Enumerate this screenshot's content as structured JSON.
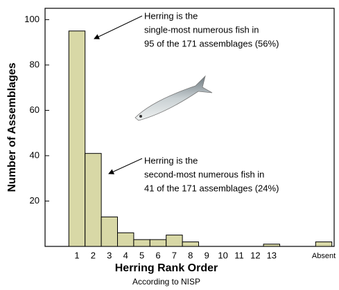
{
  "chart_data": {
    "type": "bar",
    "x_label": "Herring Rank Order",
    "x_sublabel": "According to NISP",
    "y_label": "Number of Assemblages",
    "categories": [
      "1",
      "2",
      "3",
      "4",
      "5",
      "6",
      "7",
      "8",
      "9",
      "10",
      "11",
      "12",
      "13",
      "Absent"
    ],
    "values": [
      95,
      41,
      13,
      6,
      3,
      3,
      5,
      2,
      0,
      0,
      0,
      0,
      1,
      2
    ],
    "color": "#d8d8a6",
    "ylim": [
      0,
      105
    ],
    "yticks": [
      20,
      40,
      60,
      80,
      100
    ],
    "annotations": [
      [
        "Herring is the",
        "single-most numerous fish in",
        "95 of the 171 assemblages (56%)"
      ],
      [
        "Herring is the",
        "second-most numerous fish in",
        "41 of the 171 assemblages (24%)"
      ]
    ]
  }
}
